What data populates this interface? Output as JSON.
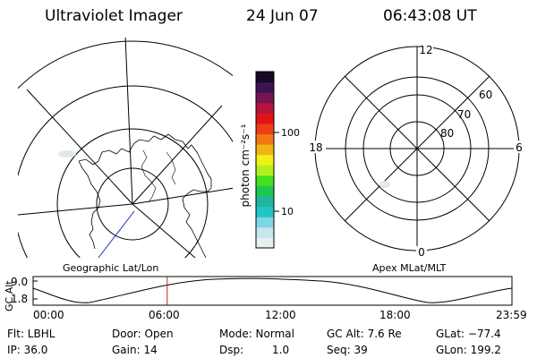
{
  "header": {
    "instrument": "Ultraviolet Imager",
    "date": "24 Jun 07",
    "time": "06:43:08 UT"
  },
  "colorbar": {
    "unit_label": "photon cm⁻²s⁻¹",
    "tick_100": "100",
    "tick_10": "10",
    "stops": [
      "#e6f0f0",
      "#c8e6ec",
      "#7fd6e6",
      "#22c4c4",
      "#22b4a0",
      "#1ec850",
      "#44e01e",
      "#b4f01e",
      "#f0f014",
      "#f0b414",
      "#f07814",
      "#f03c14",
      "#e01414",
      "#b4143c",
      "#781450",
      "#3c1450",
      "#140a28"
    ]
  },
  "left_panel": {
    "caption": "Geographic Lat/Lon"
  },
  "right_panel": {
    "caption": "Apex MLat/MLT",
    "mlt_12": "12",
    "mlt_18": "18",
    "mlt_6": "6",
    "mlt_0": "0",
    "lat_60": "60",
    "lat_70": "70",
    "lat_80": "80"
  },
  "altitude_plot": {
    "ylabel": "GC Alt",
    "ytick_high": "9.0",
    "ytick_low": "1.8",
    "xticks": [
      "00:00",
      "06:00",
      "12:00",
      "18:00",
      "23:59"
    ],
    "current_time_fraction": 0.28
  },
  "status": {
    "filter": "Flt: LBHL",
    "ip": "IP: 36.0",
    "door": "Door: Open",
    "gain": "Gain: 14",
    "mode": "Mode: Normal",
    "dsp_label": "Dsp:",
    "dsp_value": "1.0",
    "gc_alt": "GC Alt: 7.6 Re",
    "seq": "Seq: 39",
    "glat": "GLat: −77.4",
    "glon": "GLon: 199.2"
  }
}
